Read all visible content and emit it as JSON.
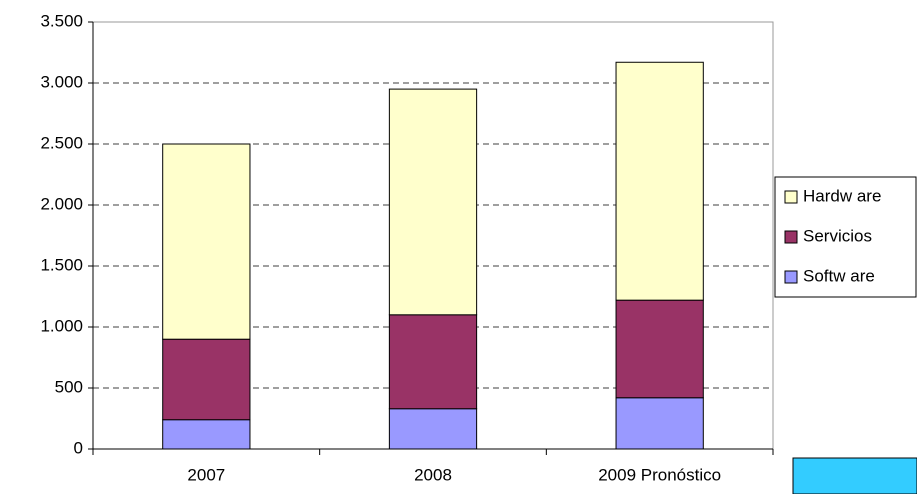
{
  "chart_data": {
    "type": "bar",
    "stacked": true,
    "categories": [
      "2007",
      "2008",
      "2009 Pronóstico"
    ],
    "series": [
      {
        "name": "Softw are",
        "color": "#9999ff",
        "values": [
          240,
          330,
          420
        ]
      },
      {
        "name": "Servicios",
        "color": "#993366",
        "values": [
          660,
          770,
          800
        ]
      },
      {
        "name": "Hardw are",
        "color": "#ffffcc",
        "values": [
          1600,
          1850,
          1950
        ]
      }
    ],
    "ylim": [
      0,
      3500
    ],
    "yticks": [
      0,
      500,
      {
        "value": 1000,
        "label": "1.000"
      },
      {
        "value": 1500,
        "label": "1.500"
      },
      {
        "value": 2000,
        "label": "2.000"
      },
      {
        "value": 2500,
        "label": "2.500"
      },
      {
        "value": 3000,
        "label": "3.000"
      },
      {
        "value": 3500,
        "label": "3.500"
      }
    ],
    "grid": true,
    "legend": "right"
  }
}
